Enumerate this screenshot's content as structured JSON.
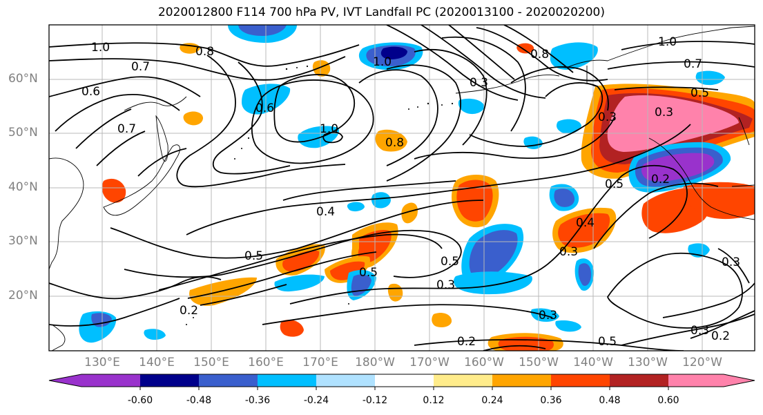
{
  "title": "2020012800 F114 700 hPa PV, IVT Landfall PC (2020013100 - 2020020200)",
  "lat_labels": [
    "60°N",
    "50°N",
    "40°N",
    "30°N",
    "20°N"
  ],
  "lon_labels": [
    "130°E",
    "140°E",
    "150°E",
    "160°E",
    "170°E",
    "180°W",
    "170°W",
    "160°W",
    "150°W",
    "140°W",
    "130°W",
    "120°W"
  ],
  "colorbar": {
    "colors": [
      "#9932cc",
      "#00008b",
      "#3a5fcd",
      "#00bfff",
      "#b0e2ff",
      "#ffffff",
      "#ffec8b",
      "#ffa500",
      "#ff4500",
      "#b22222",
      "#ff82ab"
    ],
    "tick_labels": [
      "-0.60",
      "-0.48",
      "-0.36",
      "-0.24",
      "-0.12",
      "0.12",
      "0.24",
      "0.36",
      "0.48",
      "0.60"
    ]
  },
  "contour_labels": [
    "1.0",
    "0.8",
    "0.7",
    "0.6",
    "0.6",
    "0.7",
    "1.0",
    "0.8",
    "0.4",
    "0.5",
    "0.3",
    "0.5",
    "0.4",
    "0.3",
    "0.2",
    "0.5",
    "0.3",
    "0.2",
    "0.3",
    "0.2",
    "0.5",
    "1.0",
    "0.7",
    "0.5",
    "0.3",
    "0.8",
    "0.2",
    "0.3",
    "0.3",
    "0.5",
    "1.0",
    "0.3"
  ]
}
